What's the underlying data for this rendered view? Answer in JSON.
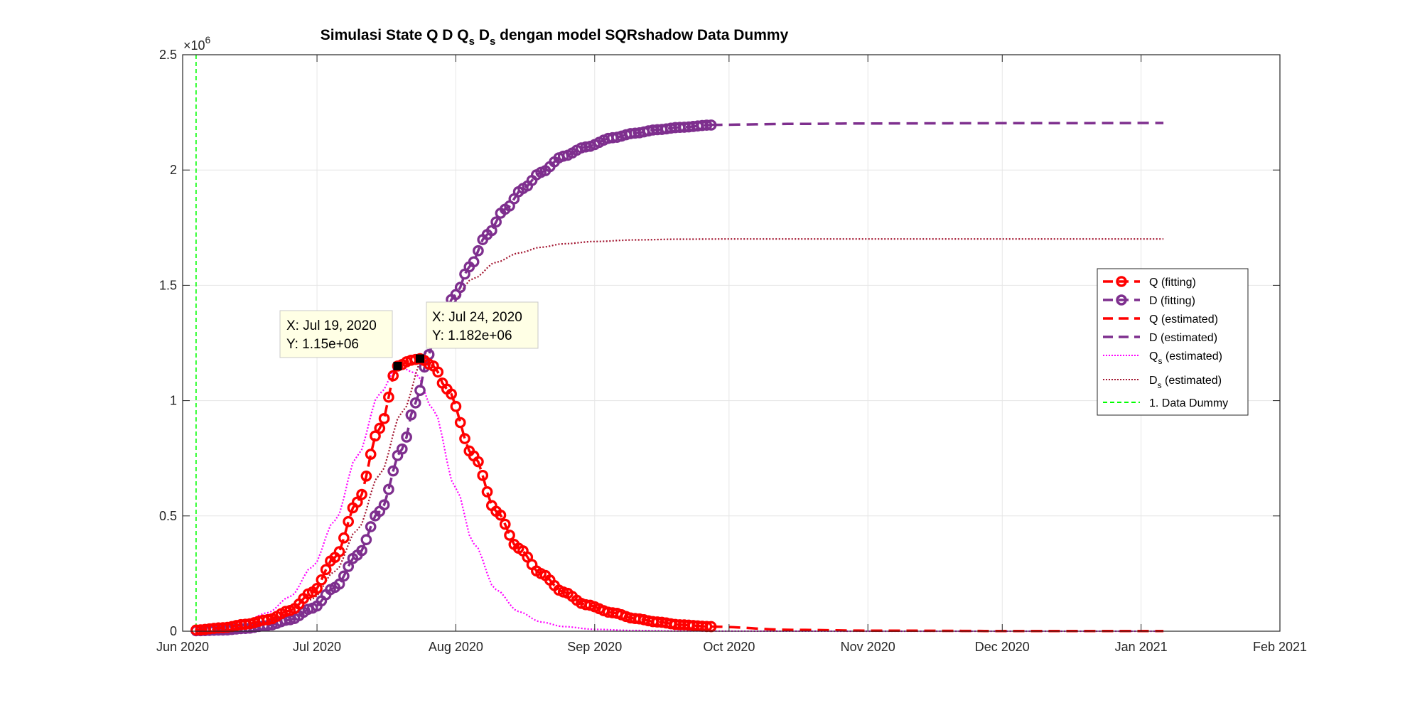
{
  "chart_data": {
    "type": "line",
    "title": {
      "prefix": "Simulasi State  Q D Q",
      "sub1": "s",
      "mid": " D",
      "sub2": "s",
      "suffix": " dengan model SQRshadow Data Dummy"
    },
    "xlabel": "",
    "ylabel": "",
    "x_axis": {
      "type": "date",
      "range": [
        "2020-06-01",
        "2021-02-01"
      ],
      "ticks": [
        {
          "date": "2020-06-01",
          "label": "Jun 2020"
        },
        {
          "date": "2020-07-01",
          "label": "Jul 2020"
        },
        {
          "date": "2020-08-01",
          "label": "Aug 2020"
        },
        {
          "date": "2020-09-01",
          "label": "Sep 2020"
        },
        {
          "date": "2020-10-01",
          "label": "Oct 2020"
        },
        {
          "date": "2020-11-01",
          "label": "Nov 2020"
        },
        {
          "date": "2020-12-01",
          "label": "Dec 2020"
        },
        {
          "date": "2021-01-01",
          "label": "Jan 2021"
        },
        {
          "date": "2021-02-01",
          "label": "Feb 2021"
        }
      ]
    },
    "y_axis": {
      "range": [
        0,
        2500000
      ],
      "ticks": [
        {
          "value": 0,
          "label": "0"
        },
        {
          "value": 500000,
          "label": "0.5"
        },
        {
          "value": 1000000,
          "label": "1"
        },
        {
          "value": 1500000,
          "label": "1.5"
        },
        {
          "value": 2000000,
          "label": "2"
        },
        {
          "value": 2500000,
          "label": "2.5"
        }
      ],
      "exponent_base": "×10",
      "exponent_power": "6"
    },
    "grid": true,
    "legend_position": "right",
    "series": [
      {
        "name": "Q (fitting)",
        "color": "#ff0000",
        "style": "dashed-circle",
        "dates": [
          "2020-06-04",
          "2020-06-10",
          "2020-06-15",
          "2020-06-20",
          "2020-06-25",
          "2020-06-30",
          "2020-07-05",
          "2020-07-10",
          "2020-07-15",
          "2020-07-19",
          "2020-07-22",
          "2020-07-24",
          "2020-07-27",
          "2020-07-30",
          "2020-08-05",
          "2020-08-10",
          "2020-08-15",
          "2020-08-20",
          "2020-08-25",
          "2020-08-30",
          "2020-09-05",
          "2020-09-10",
          "2020-09-15",
          "2020-09-20",
          "2020-09-27"
        ],
        "values": [
          5000,
          15000,
          30000,
          50000,
          90000,
          170000,
          320000,
          560000,
          880000,
          1150000,
          1175000,
          1182000,
          1150000,
          1050000,
          760000,
          520000,
          360000,
          250000,
          170000,
          115000,
          80000,
          55000,
          40000,
          28000,
          20000
        ]
      },
      {
        "name": "D (fitting)",
        "color": "#7e2f8e",
        "style": "dashed-circle",
        "dates": [
          "2020-06-04",
          "2020-06-10",
          "2020-06-15",
          "2020-06-20",
          "2020-06-25",
          "2020-06-30",
          "2020-07-05",
          "2020-07-10",
          "2020-07-15",
          "2020-07-20",
          "2020-07-23",
          "2020-07-26",
          "2020-07-28",
          "2020-08-01",
          "2020-08-04",
          "2020-08-08",
          "2020-08-12",
          "2020-08-16",
          "2020-08-20",
          "2020-08-25",
          "2020-08-30",
          "2020-09-05",
          "2020-09-10",
          "2020-09-15",
          "2020-09-20",
          "2020-09-27"
        ],
        "values": [
          2000,
          5000,
          12000,
          25000,
          50000,
          100000,
          190000,
          330000,
          520000,
          790000,
          990000,
          1200000,
          1320000,
          1460000,
          1580000,
          1720000,
          1830000,
          1920000,
          1990000,
          2060000,
          2100000,
          2140000,
          2160000,
          2175000,
          2185000,
          2195000
        ]
      },
      {
        "name": "Q (estimated)",
        "color": "#ff0000",
        "style": "dashed",
        "dates": [
          "2020-09-27",
          "2020-10-15",
          "2020-11-01",
          "2020-12-01",
          "2021-01-06"
        ],
        "values": [
          20000,
          6000,
          2500,
          1000,
          500
        ]
      },
      {
        "name": "D (estimated)",
        "color": "#7e2f8e",
        "style": "dashed",
        "dates": [
          "2020-09-27",
          "2020-10-15",
          "2020-11-01",
          "2020-12-01",
          "2021-01-06"
        ],
        "values": [
          2196000,
          2200000,
          2202000,
          2203000,
          2204000
        ]
      },
      {
        "name": "Q_s (estimated)",
        "name_main": "Q",
        "name_sub": "s",
        "name_rest": " (estimated)",
        "color": "#ff00ff",
        "style": "dotted",
        "dates": [
          "2020-06-04",
          "2020-06-10",
          "2020-06-15",
          "2020-06-20",
          "2020-06-25",
          "2020-06-30",
          "2020-07-05",
          "2020-07-10",
          "2020-07-15",
          "2020-07-19",
          "2020-07-23",
          "2020-07-27",
          "2020-08-01",
          "2020-08-05",
          "2020-08-10",
          "2020-08-15",
          "2020-08-20",
          "2020-08-25",
          "2020-09-01",
          "2020-09-10",
          "2020-09-20",
          "2020-10-01",
          "2020-11-01",
          "2021-01-06"
        ],
        "values": [
          10000,
          25000,
          45000,
          80000,
          150000,
          280000,
          480000,
          760000,
          1030000,
          1150000,
          1120000,
          960000,
          620000,
          380000,
          180000,
          85000,
          40000,
          20000,
          8000,
          3000,
          1000,
          500,
          100,
          0
        ]
      },
      {
        "name": "D_s (estimated)",
        "name_main": "D",
        "name_sub": "s",
        "name_rest": " (estimated)",
        "color": "#a2142f",
        "style": "dotted",
        "dates": [
          "2020-06-04",
          "2020-06-10",
          "2020-06-15",
          "2020-06-20",
          "2020-06-25",
          "2020-06-30",
          "2020-07-05",
          "2020-07-10",
          "2020-07-15",
          "2020-07-20",
          "2020-07-25",
          "2020-07-30",
          "2020-08-05",
          "2020-08-10",
          "2020-08-15",
          "2020-08-20",
          "2020-08-25",
          "2020-09-01",
          "2020-09-10",
          "2020-09-20",
          "2020-10-01",
          "2020-11-01",
          "2020-12-01",
          "2021-01-06"
        ],
        "values": [
          3000,
          8000,
          18000,
          35000,
          70000,
          140000,
          260000,
          440000,
          680000,
          950000,
          1200000,
          1400000,
          1530000,
          1600000,
          1640000,
          1665000,
          1680000,
          1690000,
          1697000,
          1700000,
          1701000,
          1701000,
          1701000,
          1701000
        ]
      },
      {
        "name": "1. Data Dummy",
        "color": "#00ff00",
        "style": "dashed-vertical",
        "dates": [
          "2020-06-04",
          "2020-06-04"
        ],
        "values": [
          0,
          2500000
        ]
      }
    ],
    "datatips": [
      {
        "x_label": "X: Jul 19, 2020",
        "y_label": "Y: 1.15e+06",
        "date": "2020-07-19",
        "value": 1150000
      },
      {
        "x_label": "X: Jul 24, 2020",
        "y_label": "Y: 1.182e+06",
        "date": "2020-07-24",
        "value": 1182000
      }
    ]
  }
}
